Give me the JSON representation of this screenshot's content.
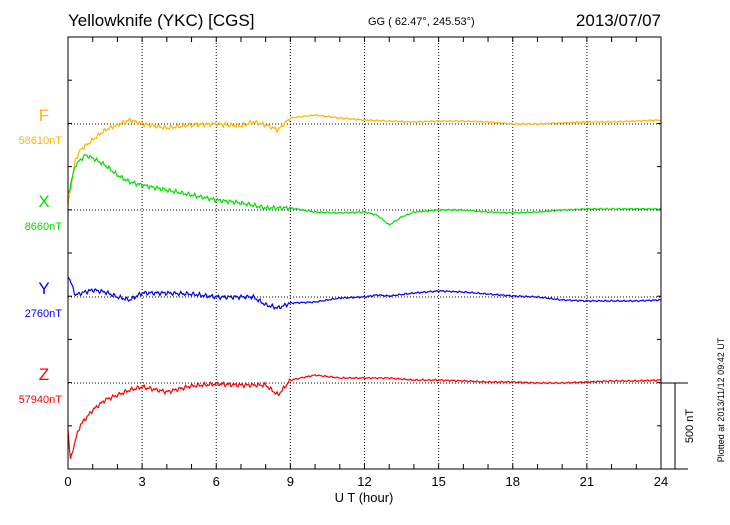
{
  "header": {
    "title": "Yellowknife (YKC)  [CGS]",
    "coords": "GG ( 62.47°, 245.53°)",
    "date": "2013/07/07"
  },
  "plotted_note": "Plotted at 2013/11/12 09:42 UT",
  "chart_data": {
    "type": "line",
    "title": "Yellowknife (YKC)  [CGS]",
    "xlabel": "U T (hour)",
    "xlim": [
      0,
      24
    ],
    "xticks": [
      "0",
      "3",
      "6",
      "9",
      "12",
      "15",
      "18",
      "21",
      "24"
    ],
    "scale_bar": "500 nT",
    "scale_bar_value": 500,
    "grid": true,
    "series": [
      {
        "name": "F",
        "baseline_label": "58610nT",
        "color": "#ffb400",
        "x": [
          0,
          0.3,
          0.5,
          1,
          1.5,
          2,
          2.5,
          3,
          4,
          5,
          6,
          7,
          7.5,
          8,
          8.5,
          9,
          10,
          11,
          12,
          13,
          14,
          15,
          16,
          17,
          18,
          19,
          20,
          21,
          22,
          23,
          24
        ],
        "values": [
          -470,
          -209,
          -151,
          -93,
          -35,
          -6,
          23,
          0,
          -23,
          -6,
          0,
          -12,
          12,
          -6,
          -35,
          35,
          52,
          35,
          23,
          17,
          12,
          17,
          17,
          12,
          0,
          0,
          6,
          12,
          12,
          17,
          23
        ]
      },
      {
        "name": "X",
        "baseline_label": "8660nT",
        "color": "#00e000",
        "x": [
          0,
          0.3,
          0.7,
          1,
          1.5,
          2,
          2.5,
          3,
          4,
          5,
          6,
          7,
          8,
          9,
          10,
          11,
          12,
          12.5,
          13,
          13.5,
          14,
          15,
          16,
          17,
          18,
          19,
          20,
          21,
          22,
          23,
          24
        ],
        "values": [
          87,
          261,
          319,
          302,
          261,
          203,
          162,
          145,
          116,
          87,
          58,
          41,
          12,
          12,
          -12,
          -17,
          -12,
          -29,
          -87,
          -41,
          -12,
          0,
          0,
          -12,
          -17,
          -12,
          0,
          6,
          6,
          6,
          6
        ]
      },
      {
        "name": "Y",
        "baseline_label": "2760nT",
        "color": "#0000ff",
        "x": [
          0,
          0.3,
          0.7,
          1,
          1.5,
          2,
          2.5,
          3,
          4,
          5,
          6,
          7,
          7.5,
          8,
          8.5,
          9,
          10,
          11,
          12,
          12.5,
          13,
          14,
          15,
          16,
          17,
          18,
          19,
          20,
          21,
          22,
          23,
          24
        ],
        "values": [
          128,
          12,
          29,
          41,
          29,
          0,
          -17,
          23,
          23,
          17,
          0,
          0,
          0,
          -46,
          -64,
          -35,
          -29,
          -6,
          0,
          12,
          6,
          23,
          35,
          29,
          17,
          6,
          0,
          -17,
          -23,
          -23,
          -23,
          -17
        ]
      },
      {
        "name": "Z",
        "baseline_label": "57940nT",
        "color": "#ff0000",
        "x": [
          0,
          0.1,
          0.3,
          0.5,
          1,
          1.5,
          2,
          2.5,
          3,
          4,
          5,
          6,
          7,
          8,
          8.5,
          9,
          10,
          11,
          12,
          13,
          14,
          15,
          16,
          17,
          18,
          19,
          20,
          21,
          22,
          23,
          24
        ],
        "values": [
          -273,
          -448,
          -331,
          -244,
          -157,
          -99,
          -70,
          -41,
          -23,
          -52,
          -17,
          -6,
          -12,
          -12,
          -70,
          17,
          46,
          29,
          29,
          29,
          17,
          17,
          12,
          6,
          6,
          0,
          0,
          6,
          12,
          12,
          17
        ]
      }
    ]
  }
}
